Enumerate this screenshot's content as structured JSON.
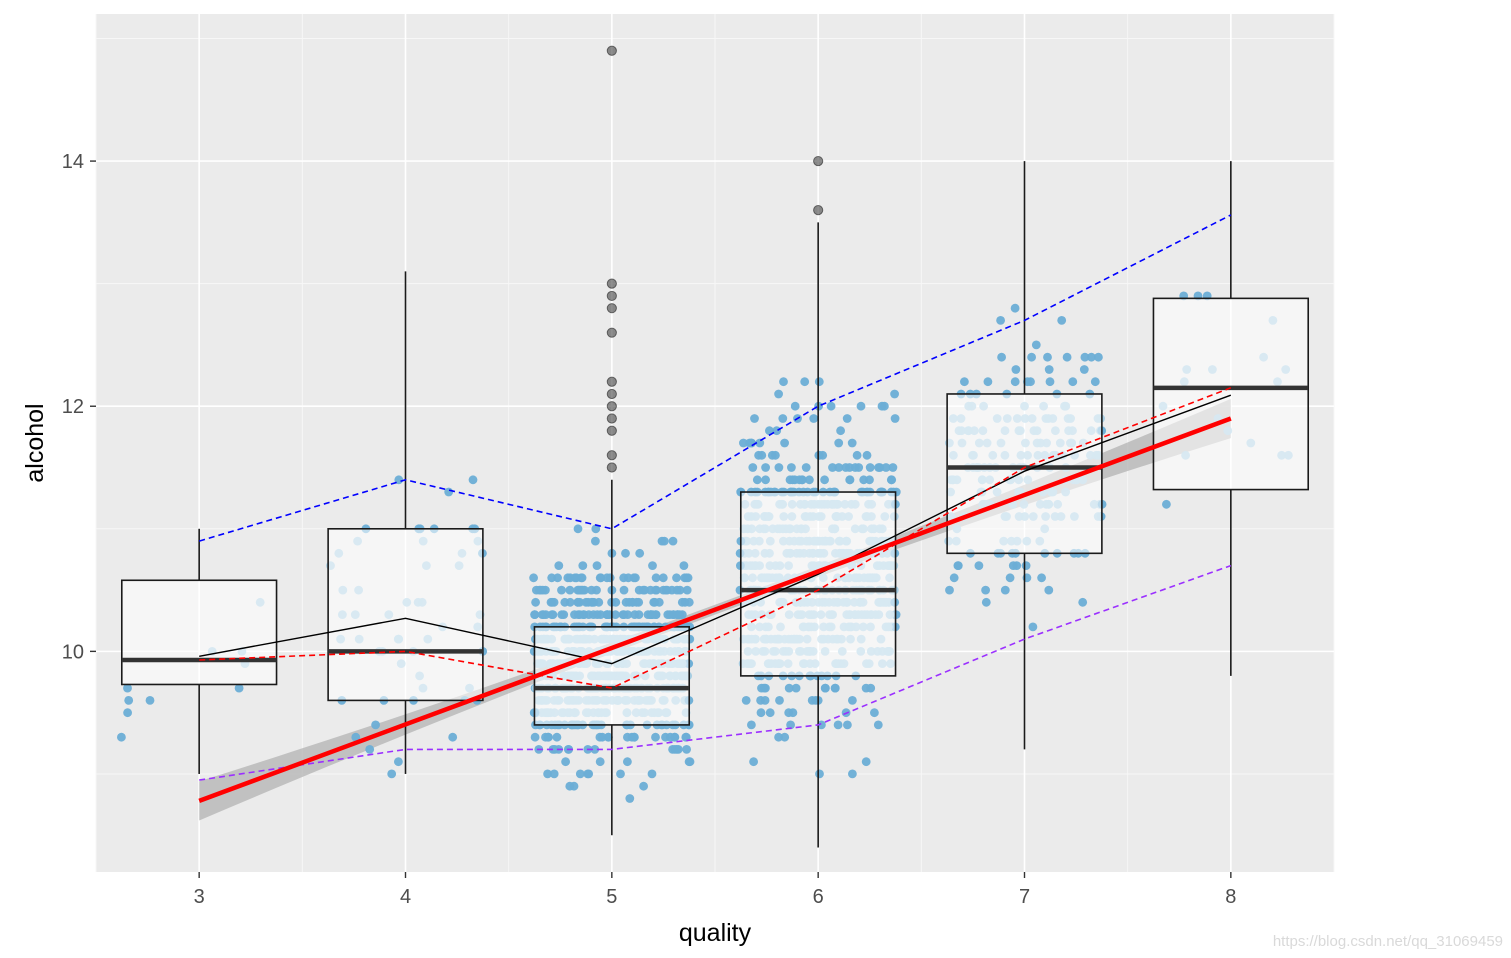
{
  "chart_data": {
    "type": "boxplot",
    "xlabel": "quality",
    "ylabel": "alcohol",
    "x_ticks": [
      "3",
      "4",
      "5",
      "6",
      "7",
      "8"
    ],
    "y_ticks": [
      "10",
      "12",
      "14"
    ],
    "xlim": [
      2.5,
      8.5
    ],
    "ylim": [
      8.2,
      15.2
    ],
    "grid": true,
    "background": "#ebebeb",
    "boxes": [
      {
        "quality": 3,
        "lower_whisker": 9.0,
        "q1": 9.73,
        "median": 9.93,
        "q3": 10.58,
        "upper_whisker": 11.0,
        "outliers": []
      },
      {
        "quality": 4,
        "lower_whisker": 9.0,
        "q1": 9.6,
        "median": 10.0,
        "q3": 11.0,
        "upper_whisker": 13.1,
        "outliers": []
      },
      {
        "quality": 5,
        "lower_whisker": 8.5,
        "q1": 9.4,
        "median": 9.7,
        "q3": 10.2,
        "upper_whisker": 11.4,
        "outliers": [
          11.5,
          11.6,
          11.8,
          11.9,
          12.0,
          12.1,
          12.2,
          12.6,
          12.8,
          12.9,
          13.0,
          14.9
        ]
      },
      {
        "quality": 6,
        "lower_whisker": 8.4,
        "q1": 9.8,
        "median": 10.5,
        "q3": 11.3,
        "upper_whisker": 13.5,
        "outliers": [
          13.6,
          14.0
        ]
      },
      {
        "quality": 7,
        "lower_whisker": 9.2,
        "q1": 10.8,
        "median": 11.5,
        "q3": 12.1,
        "upper_whisker": 14.0,
        "outliers": []
      },
      {
        "quality": 8,
        "lower_whisker": 9.8,
        "q1": 11.32,
        "median": 12.15,
        "q3": 12.88,
        "upper_whisker": 14.0,
        "outliers": []
      }
    ],
    "series": [
      {
        "style": "black-solid",
        "color": "#000000",
        "dash": false,
        "x": [
          3,
          4,
          5,
          6,
          7,
          8
        ],
        "y": [
          9.96,
          10.27,
          9.9,
          10.63,
          11.47,
          12.09
        ]
      },
      {
        "style": "red-dashed",
        "color": "#ff0000",
        "dash": true,
        "x": [
          3,
          4,
          5,
          6,
          7,
          8
        ],
        "y": [
          9.93,
          10.0,
          9.7,
          10.5,
          11.5,
          12.15
        ]
      },
      {
        "style": "blue-dashed",
        "color": "#0000ff",
        "dash": true,
        "x": [
          3,
          4,
          5,
          6,
          7,
          8
        ],
        "y": [
          10.9,
          11.4,
          11.0,
          12.0,
          12.7,
          13.56
        ]
      },
      {
        "style": "purple-dashed",
        "color": "#9b30ff",
        "dash": true,
        "x": [
          3,
          4,
          5,
          6,
          7,
          8
        ],
        "y": [
          8.95,
          9.2,
          9.2,
          9.4,
          10.1,
          10.7
        ]
      }
    ],
    "trend": {
      "color": "#ff0000",
      "band_color": "#b3b3b3",
      "x": [
        3,
        8
      ],
      "y": [
        8.78,
        11.9
      ],
      "band_halfwidth_ends": 0.16,
      "band_halfwidth_mid": 0.04
    },
    "jitter": {
      "color": "#6baed6",
      "light_color": "#a6cee3",
      "width": 0.38,
      "counts": [
        10,
        53,
        681,
        638,
        199,
        18
      ],
      "means": [
        9.96,
        10.27,
        9.9,
        10.63,
        11.47,
        12.09
      ],
      "spread": [
        0.82,
        0.93,
        0.74,
        1.05,
        0.96,
        1.22
      ]
    }
  },
  "watermark": "https://blog.csdn.net/qq_31069459"
}
